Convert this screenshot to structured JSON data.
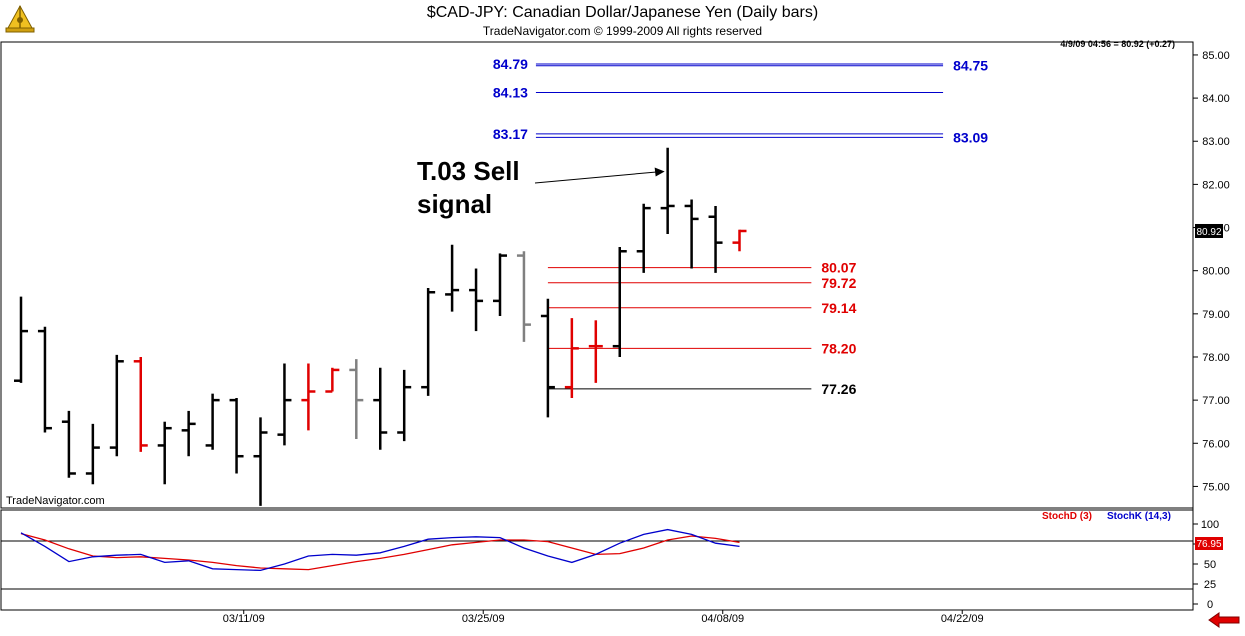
{
  "header": {
    "title": "$CAD-JPY:  Canadian Dollar/Japanese Yen  (Daily bars)",
    "copyright": "TradeNavigator.com © 1999-2009 All rights reserved",
    "quote": "4/9/09 04:56 = 80.92 (+0.27)",
    "watermark": "TradeNavigator.com"
  },
  "colors": {
    "black_bar": "#000000",
    "red_bar": "#e00000",
    "gray_bar": "#808080",
    "blue_level": "#0000cc",
    "red_level": "#e00000",
    "stoch_d": "#e00000",
    "stoch_k": "#0000cc"
  },
  "chart_data": [
    {
      "type": "ohlc",
      "title": "$CAD-JPY:  Canadian Dollar/Japanese Yen  (Daily bars)",
      "ylim": [
        74.5,
        85.3
      ],
      "y_ticks": [
        "85.00",
        "84.00",
        "83.00",
        "82.00",
        "81.00",
        "80.00",
        "79.00",
        "78.00",
        "77.00",
        "76.00",
        "75.00"
      ],
      "x_ticks": [
        "03/11/09",
        "03/25/09",
        "04/08/09",
        "04/22/09"
      ],
      "last_price_label": "80.92",
      "bars": [
        {
          "o": 77.45,
          "h": 79.4,
          "l": 77.4,
          "c": 78.6,
          "color": "black_bar"
        },
        {
          "o": 78.6,
          "h": 78.7,
          "l": 76.25,
          "c": 76.35,
          "color": "black_bar"
        },
        {
          "o": 76.5,
          "h": 76.75,
          "l": 75.2,
          "c": 75.3,
          "color": "black_bar"
        },
        {
          "o": 75.3,
          "h": 76.45,
          "l": 75.05,
          "c": 75.9,
          "color": "black_bar"
        },
        {
          "o": 75.9,
          "h": 78.05,
          "l": 75.7,
          "c": 77.9,
          "color": "black_bar"
        },
        {
          "o": 77.9,
          "h": 78.0,
          "l": 75.8,
          "c": 75.95,
          "color": "red_bar"
        },
        {
          "o": 75.95,
          "h": 76.5,
          "l": 75.05,
          "c": 76.35,
          "color": "black_bar"
        },
        {
          "o": 76.3,
          "h": 76.75,
          "l": 75.7,
          "c": 76.45,
          "color": "black_bar"
        },
        {
          "o": 75.95,
          "h": 77.15,
          "l": 75.85,
          "c": 77.0,
          "color": "black_bar"
        },
        {
          "o": 77.0,
          "h": 77.05,
          "l": 75.3,
          "c": 75.7,
          "color": "black_bar"
        },
        {
          "o": 75.7,
          "h": 76.6,
          "l": 74.55,
          "c": 76.25,
          "color": "black_bar"
        },
        {
          "o": 76.2,
          "h": 77.85,
          "l": 75.95,
          "c": 77.0,
          "color": "black_bar"
        },
        {
          "o": 77.0,
          "h": 77.85,
          "l": 76.3,
          "c": 77.2,
          "color": "red_bar"
        },
        {
          "o": 77.2,
          "h": 77.75,
          "l": 77.2,
          "c": 77.7,
          "color": "red_bar"
        },
        {
          "o": 77.7,
          "h": 77.95,
          "l": 76.1,
          "c": 77.0,
          "color": "gray_bar"
        },
        {
          "o": 77.0,
          "h": 77.75,
          "l": 75.85,
          "c": 76.25,
          "color": "black_bar"
        },
        {
          "o": 76.25,
          "h": 77.7,
          "l": 76.05,
          "c": 77.3,
          "color": "black_bar"
        },
        {
          "o": 77.3,
          "h": 79.6,
          "l": 77.1,
          "c": 79.5,
          "color": "black_bar"
        },
        {
          "o": 79.45,
          "h": 80.6,
          "l": 79.05,
          "c": 79.55,
          "color": "black_bar"
        },
        {
          "o": 79.55,
          "h": 80.05,
          "l": 78.6,
          "c": 79.3,
          "color": "black_bar"
        },
        {
          "o": 79.3,
          "h": 80.4,
          "l": 78.95,
          "c": 80.35,
          "color": "black_bar"
        },
        {
          "o": 80.35,
          "h": 80.45,
          "l": 78.35,
          "c": 78.75,
          "color": "gray_bar"
        },
        {
          "o": 78.95,
          "h": 79.35,
          "l": 76.6,
          "c": 77.3,
          "color": "black_bar"
        },
        {
          "o": 77.3,
          "h": 78.9,
          "l": 77.05,
          "c": 78.2,
          "color": "red_bar"
        },
        {
          "o": 78.25,
          "h": 78.85,
          "l": 77.4,
          "c": 78.25,
          "color": "red_bar"
        },
        {
          "o": 78.25,
          "h": 80.55,
          "l": 78.0,
          "c": 80.45,
          "color": "black_bar"
        },
        {
          "o": 80.45,
          "h": 81.55,
          "l": 79.95,
          "c": 81.45,
          "color": "black_bar"
        },
        {
          "o": 81.45,
          "h": 82.85,
          "l": 80.85,
          "c": 81.5,
          "color": "black_bar"
        },
        {
          "o": 81.5,
          "h": 81.65,
          "l": 80.05,
          "c": 81.2,
          "color": "black_bar"
        },
        {
          "o": 81.25,
          "h": 81.5,
          "l": 79.95,
          "c": 80.65,
          "color": "black_bar"
        },
        {
          "o": 80.65,
          "h": 80.95,
          "l": 80.45,
          "c": 80.92,
          "color": "red_bar"
        }
      ],
      "levels": [
        {
          "left_label": "84.79",
          "right_label": "84.75",
          "y1": 84.79,
          "y2": 84.75,
          "color": "blue_level",
          "x_from": 21.5,
          "x_to": 38.5
        },
        {
          "left_label": "84.13",
          "right_label": "",
          "y1": 84.13,
          "y2": null,
          "color": "blue_level",
          "x_from": 21.5,
          "x_to": 38.5
        },
        {
          "left_label": "83.17",
          "right_label": "83.09",
          "y1": 83.17,
          "y2": 83.09,
          "color": "blue_level",
          "x_from": 21.5,
          "x_to": 38.5
        },
        {
          "left_label": "",
          "right_label": "80.07",
          "y1": 80.07,
          "y2": null,
          "color": "red_level",
          "x_from": 22,
          "x_to": 33
        },
        {
          "left_label": "",
          "right_label": "79.72",
          "y1": 79.72,
          "y2": null,
          "color": "red_level",
          "x_from": 22,
          "x_to": 33
        },
        {
          "left_label": "",
          "right_label": "79.14",
          "y1": 79.14,
          "y2": null,
          "color": "red_level",
          "x_from": 22,
          "x_to": 33
        },
        {
          "left_label": "",
          "right_label": "78.20",
          "y1": 78.2,
          "y2": null,
          "color": "red_level",
          "x_from": 22,
          "x_to": 33
        },
        {
          "left_label": "",
          "right_label": "77.26",
          "y1": 77.26,
          "y2": null,
          "color": "black_bar",
          "x_from": 22,
          "x_to": 33
        }
      ],
      "annotation": {
        "line1": "T.03 Sell",
        "line2": "signal",
        "target_bar": 27,
        "target_price": 82.3
      }
    },
    {
      "type": "line",
      "ylim": [
        0,
        100
      ],
      "y_ticks": [
        "100",
        "75",
        "50",
        "25",
        "0"
      ],
      "legend": [
        "StochD (3)",
        "StochK (14,3)"
      ],
      "last_value_label": "76.95",
      "series": [
        {
          "name": "StochD (3)",
          "color": "stoch_d",
          "values": [
            88,
            80,
            69,
            60,
            58,
            59,
            57,
            55,
            52,
            48,
            45,
            44,
            43,
            48,
            53,
            57,
            62,
            68,
            74,
            77,
            80,
            80,
            78,
            70,
            62,
            63,
            70,
            80,
            85,
            82,
            77
          ]
        },
        {
          "name": "StochK (14,3)",
          "color": "stoch_k",
          "values": [
            89,
            72,
            53,
            59,
            61,
            62,
            52,
            54,
            44,
            43,
            42,
            50,
            60,
            62,
            61,
            64,
            72,
            81,
            83,
            84,
            83,
            70,
            60,
            52,
            62,
            76,
            87,
            93,
            87,
            76,
            72
          ]
        }
      ]
    }
  ]
}
